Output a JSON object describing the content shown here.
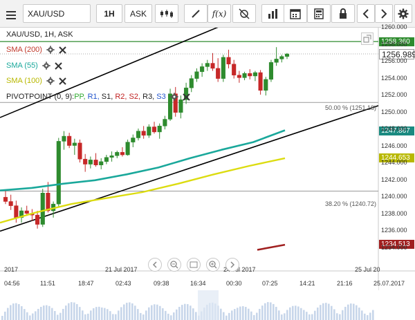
{
  "toolbar": {
    "symbol": "XAU/USD",
    "timeframe": "1H",
    "price_type": "ASK",
    "fx_label": "f(x)"
  },
  "chart": {
    "title": "XAU/USD, 1H, ASK",
    "indicators": [
      {
        "label": "SMA (200)",
        "color": "#c0392b"
      },
      {
        "label": "SMA (55)",
        "color": "#1aa89b"
      },
      {
        "label": "SMA (100)",
        "color": "#c9c900"
      }
    ],
    "pivot": {
      "label": "PIVOTPOINT (0, 9):",
      "items": [
        {
          "label": "PP,",
          "color": "#2eaa2e"
        },
        {
          "label": "R1,",
          "color": "#2255cc"
        },
        {
          "label": "S1,",
          "color": "#222222"
        },
        {
          "label": "R2,",
          "color": "#c02020"
        },
        {
          "label": "S2,",
          "color": "#c02020"
        },
        {
          "label": "R3,",
          "color": "#222222"
        },
        {
          "label": "S3",
          "color": "#2255cc"
        }
      ]
    },
    "fib_levels": [
      {
        "label": "50.00 % (1251.18)",
        "price": 1251.18
      },
      {
        "label": "38.20 % (1240.72)",
        "price": 1240.72
      }
    ],
    "price_tags": [
      {
        "label": "1258.360",
        "price": 1258.36,
        "color": "#2e8b2e"
      },
      {
        "label": "1256.989",
        "price": 1256.989,
        "color": "#555555"
      },
      {
        "label": "1247.867",
        "price": 1247.867,
        "color": "#1a8a80"
      },
      {
        "label": "1244.653",
        "price": 1244.653,
        "color": "#b8b800"
      },
      {
        "label": "1234.513",
        "price": 1234.513,
        "color": "#a02020"
      }
    ],
    "y_ticks": [
      "1260.000",
      "1258.000",
      "1256.000",
      "1254.000",
      "1252.000",
      "1250.000",
      "1248.000",
      "1246.000",
      "1244.000",
      "1242.000",
      "1240.000",
      "1238.000",
      "1236.000",
      "1234.000"
    ],
    "date_labels": [
      "2017",
      "21 Jul 2017",
      "24 Jul 2017",
      "25 Jul 20"
    ],
    "x_ticks": [
      "04:56",
      "11:51",
      "18:47",
      "02:43",
      "09:38",
      "16:34",
      "00:30",
      "07:25",
      "14:21",
      "21:16",
      "25.07.2017"
    ]
  },
  "chart_data": {
    "type": "candlestick",
    "ylim": [
      1233.5,
      1260.5
    ],
    "candles": [
      [
        1240.0,
        1240.8,
        1239.2,
        1239.5
      ],
      [
        1239.5,
        1240.3,
        1238.5,
        1239.0
      ],
      [
        1239.0,
        1239.6,
        1237.0,
        1237.6
      ],
      [
        1237.6,
        1238.8,
        1237.0,
        1238.4
      ],
      [
        1238.4,
        1239.0,
        1237.8,
        1238.1
      ],
      [
        1238.1,
        1238.6,
        1237.2,
        1237.9
      ],
      [
        1237.9,
        1238.4,
        1236.3,
        1236.8
      ],
      [
        1236.8,
        1241.0,
        1236.5,
        1240.5
      ],
      [
        1240.5,
        1241.8,
        1238.2,
        1238.4
      ],
      [
        1238.4,
        1239.5,
        1237.6,
        1239.2
      ],
      [
        1239.2,
        1247.0,
        1238.8,
        1246.6
      ],
      [
        1246.6,
        1247.8,
        1245.6,
        1247.2
      ],
      [
        1247.2,
        1247.6,
        1245.8,
        1246.1
      ],
      [
        1246.1,
        1246.9,
        1245.0,
        1246.4
      ],
      [
        1246.4,
        1246.8,
        1244.1,
        1244.5
      ],
      [
        1244.5,
        1245.1,
        1243.0,
        1243.9
      ],
      [
        1243.9,
        1244.8,
        1243.4,
        1244.4
      ],
      [
        1244.4,
        1245.2,
        1243.6,
        1243.8
      ],
      [
        1243.8,
        1244.6,
        1243.3,
        1244.2
      ],
      [
        1244.2,
        1245.0,
        1243.9,
        1244.7
      ],
      [
        1244.7,
        1245.4,
        1244.2,
        1244.9
      ],
      [
        1244.9,
        1245.5,
        1244.6,
        1245.3
      ],
      [
        1245.3,
        1245.9,
        1244.8,
        1245.0
      ],
      [
        1245.0,
        1246.8,
        1244.9,
        1246.5
      ],
      [
        1246.5,
        1247.4,
        1245.9,
        1247.0
      ],
      [
        1247.0,
        1248.1,
        1246.7,
        1247.8
      ],
      [
        1247.8,
        1248.4,
        1246.9,
        1247.3
      ],
      [
        1247.3,
        1248.6,
        1247.0,
        1248.3
      ],
      [
        1248.3,
        1248.9,
        1247.5,
        1247.7
      ],
      [
        1247.7,
        1248.7,
        1246.9,
        1248.4
      ],
      [
        1248.4,
        1249.6,
        1248.0,
        1249.2
      ],
      [
        1249.2,
        1252.8,
        1249.0,
        1252.2
      ],
      [
        1252.2,
        1253.0,
        1249.5,
        1250.0
      ],
      [
        1250.0,
        1252.0,
        1249.3,
        1251.5
      ],
      [
        1251.5,
        1253.5,
        1251.0,
        1252.9
      ],
      [
        1252.9,
        1254.4,
        1252.4,
        1254.0
      ],
      [
        1254.0,
        1255.2,
        1253.6,
        1254.8
      ],
      [
        1254.8,
        1255.8,
        1254.2,
        1255.4
      ],
      [
        1255.4,
        1256.2,
        1254.9,
        1255.8
      ],
      [
        1255.8,
        1257.0,
        1254.9,
        1255.2
      ],
      [
        1255.2,
        1256.4,
        1253.6,
        1254.0
      ],
      [
        1254.0,
        1256.8,
        1253.6,
        1256.5
      ],
      [
        1256.5,
        1257.4,
        1255.2,
        1255.7
      ],
      [
        1255.7,
        1256.2,
        1254.0,
        1254.4
      ],
      [
        1254.4,
        1254.9,
        1253.5,
        1254.1
      ],
      [
        1254.1,
        1254.8,
        1253.8,
        1254.6
      ],
      [
        1254.6,
        1255.1,
        1253.9,
        1254.3
      ],
      [
        1254.3,
        1254.9,
        1253.7,
        1254.7
      ],
      [
        1254.7,
        1255.0,
        1252.1,
        1252.6
      ],
      [
        1252.6,
        1254.2,
        1252.0,
        1253.9
      ],
      [
        1253.9,
        1256.2,
        1253.6,
        1255.9
      ],
      [
        1255.9,
        1257.7,
        1255.5,
        1256.3
      ],
      [
        1256.3,
        1256.8,
        1255.9,
        1256.6
      ],
      [
        1256.6,
        1257.0,
        1256.3,
        1256.9
      ]
    ],
    "sma55": [
      1240.8,
      1241.1,
      1241.6,
      1242.0,
      1242.7,
      1243.5,
      1244.6,
      1245.6,
      1246.5,
      1247.9
    ],
    "sma100": [
      1237.0,
      1238.2,
      1239.2,
      1239.9,
      1240.6,
      1241.6,
      1242.7,
      1243.7,
      1244.6
    ],
    "sma200": [
      1233.8,
      1234.4
    ],
    "trendlines": [
      {
        "from": [
          1236.0
        ],
        "to": [
          1250.8
        ],
        "color": "#000000"
      },
      {
        "from": [
          1249.4
        ],
        "to": [
          1261.3
        ],
        "color": "#000000"
      }
    ],
    "hlines": [
      {
        "price": 1258.36,
        "color": "#2e8b2e"
      },
      {
        "price": 1251.18,
        "color": "#999999"
      },
      {
        "price": 1240.72,
        "color": "#999999"
      }
    ]
  }
}
